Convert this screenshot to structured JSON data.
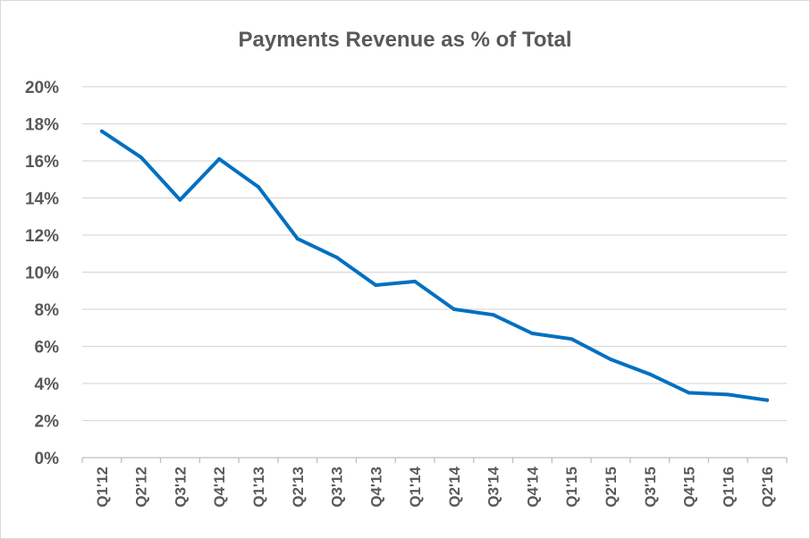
{
  "chart_data": {
    "type": "line",
    "title": "Payments Revenue as % of Total",
    "xlabel": "",
    "ylabel": "",
    "categories": [
      "Q1'12",
      "Q2'12",
      "Q3'12",
      "Q4'12",
      "Q1'13",
      "Q2'13",
      "Q3'13",
      "Q4'13",
      "Q1'14",
      "Q2'14",
      "Q3'14",
      "Q4'14",
      "Q1'15",
      "Q2'15",
      "Q3'15",
      "Q4'15",
      "Q1'16",
      "Q2'16"
    ],
    "series": [
      {
        "values": [
          17.6,
          16.2,
          13.9,
          16.1,
          14.6,
          11.8,
          10.8,
          9.3,
          9.5,
          8.0,
          7.7,
          6.7,
          6.4,
          5.3,
          4.5,
          3.5,
          3.4,
          3.1
        ],
        "color": "#0070c0"
      }
    ],
    "ylim": [
      0,
      20
    ],
    "yticks": [
      0,
      2,
      4,
      6,
      8,
      10,
      12,
      14,
      16,
      18,
      20
    ],
    "ytick_labels": [
      "0%",
      "2%",
      "4%",
      "6%",
      "8%",
      "10%",
      "12%",
      "14%",
      "16%",
      "18%",
      "20%"
    ],
    "grid": true,
    "legend": "none"
  }
}
